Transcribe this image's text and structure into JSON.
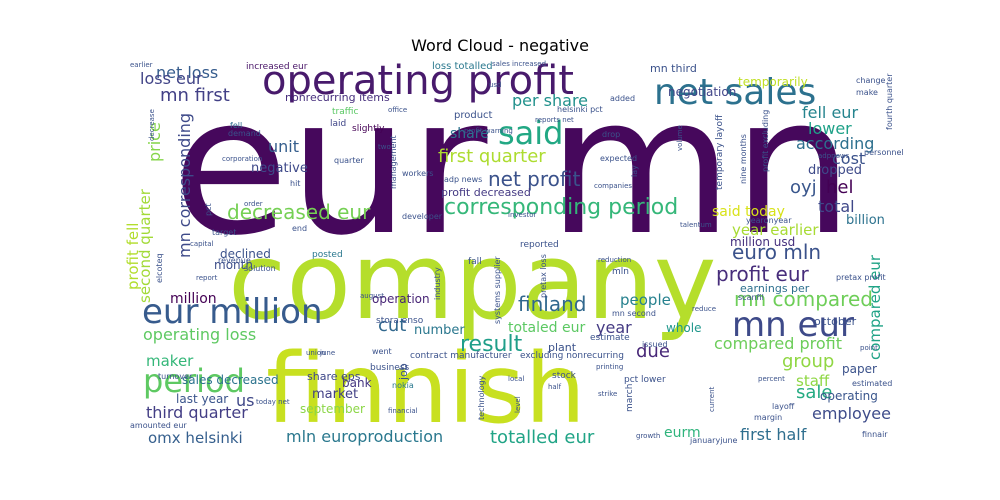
{
  "chart_data": {
    "type": "wordcloud",
    "title": "Word Cloud - negative",
    "background": "#ffffff",
    "colormap": "viridis",
    "words": [
      {
        "text": "eur mn",
        "weight": 100,
        "color": "#46085c"
      },
      {
        "text": "company",
        "weight": 78,
        "color": "#b5de2b"
      },
      {
        "text": "finnish",
        "weight": 72,
        "color": "#c8e020"
      },
      {
        "text": "operating profit",
        "weight": 36,
        "color": "#481a6c"
      },
      {
        "text": "net sales",
        "weight": 32,
        "color": "#2c718e"
      },
      {
        "text": "eur million",
        "weight": 28,
        "color": "#375b8d"
      },
      {
        "text": "mn eur",
        "weight": 28,
        "color": "#3e4a89"
      },
      {
        "text": "said",
        "weight": 28,
        "color": "#22a884"
      },
      {
        "text": "period",
        "weight": 26,
        "color": "#5ec962"
      },
      {
        "text": "corresponding period",
        "weight": 20,
        "color": "#35b779"
      },
      {
        "text": "decreased eur",
        "weight": 18,
        "color": "#75d054"
      },
      {
        "text": "net profit",
        "weight": 18,
        "color": "#3b528b"
      },
      {
        "text": "result",
        "weight": 18,
        "color": "#1f9e89"
      },
      {
        "text": "profit eur",
        "weight": 17,
        "color": "#472d7b"
      },
      {
        "text": "euro mln",
        "weight": 17,
        "color": "#3b528b"
      },
      {
        "text": "finland",
        "weight": 17,
        "color": "#31688e"
      },
      {
        "text": "mn compared",
        "weight": 17,
        "color": "#6ece58"
      },
      {
        "text": "first quarter",
        "weight": 16,
        "color": "#addc30"
      },
      {
        "text": "per share",
        "weight": 15,
        "color": "#21918c"
      },
      {
        "text": "mn first",
        "weight": 16,
        "color": "#424086"
      },
      {
        "text": "net loss",
        "weight": 15,
        "color": "#365c8d"
      },
      {
        "text": "loss eur",
        "weight": 15,
        "color": "#414487"
      },
      {
        "text": "oyj",
        "weight": 16,
        "color": "#39568c"
      },
      {
        "text": "hel",
        "weight": 16,
        "color": "#440154"
      },
      {
        "text": "cost",
        "weight": 14,
        "color": "#3b528b"
      },
      {
        "text": "lower",
        "weight": 14,
        "color": "#1fa188"
      },
      {
        "text": "according",
        "weight": 14,
        "color": "#2d708e"
      },
      {
        "text": "fell eur",
        "weight": 14,
        "color": "#25848e"
      },
      {
        "text": "total",
        "weight": 14,
        "color": "#3f4889"
      },
      {
        "text": "said today",
        "weight": 13,
        "color": "#d8e219"
      },
      {
        "text": "year earlier",
        "weight": 13,
        "color": "#a8db34"
      },
      {
        "text": "operating loss",
        "weight": 14,
        "color": "#5ec962"
      },
      {
        "text": "totalled eur",
        "weight": 16,
        "color": "#20a486"
      },
      {
        "text": "first half",
        "weight": 15,
        "color": "#2e6e8e"
      },
      {
        "text": "mln europroduction",
        "weight": 15,
        "color": "#2a788e"
      },
      {
        "text": "omx helsinki",
        "weight": 14,
        "color": "#355f8d"
      },
      {
        "text": "third quarter",
        "weight": 14,
        "color": "#433e85"
      },
      {
        "text": "employee",
        "weight": 14,
        "color": "#3e4c8a"
      },
      {
        "text": "group",
        "weight": 16,
        "color": "#90d743"
      },
      {
        "text": "sale",
        "weight": 16,
        "color": "#25ab82"
      },
      {
        "text": "compared profit",
        "weight": 14,
        "color": "#6ccd5a"
      },
      {
        "text": "people",
        "weight": 13,
        "color": "#26818e"
      },
      {
        "text": "year",
        "weight": 14,
        "color": "#443a83"
      },
      {
        "text": "cut",
        "weight": 14,
        "color": "#31688e"
      },
      {
        "text": "due",
        "weight": 14,
        "color": "#482878"
      },
      {
        "text": "us",
        "weight": 14,
        "color": "#3f4788"
      },
      {
        "text": "staff",
        "weight": 13,
        "color": "#8fd744"
      },
      {
        "text": "price",
        "weight": 14,
        "color": "#85d54a"
      },
      {
        "text": "unit",
        "weight": 12,
        "color": "#355e8d"
      },
      {
        "text": "share",
        "weight": 12,
        "color": "#2c738e"
      },
      {
        "text": "eurm",
        "weight": 12,
        "color": "#2fb47c"
      },
      {
        "text": "totaled eur",
        "weight": 11,
        "color": "#5cc863"
      },
      {
        "text": "dropped",
        "weight": 11,
        "color": "#3e4a89"
      },
      {
        "text": "billion",
        "weight": 10,
        "color": "#2c728e"
      },
      {
        "text": "million usd",
        "weight": 10,
        "color": "#46307e"
      },
      {
        "text": "million",
        "weight": 12,
        "color": "#440154"
      },
      {
        "text": "declined",
        "weight": 10,
        "color": "#3b528b"
      },
      {
        "text": "month",
        "weight": 10,
        "color": "#3d4e8a"
      },
      {
        "text": "number",
        "weight": 11,
        "color": "#2a778e"
      },
      {
        "text": "maker",
        "weight": 12,
        "color": "#35b779"
      },
      {
        "text": "sales decreased",
        "weight": 10,
        "color": "#2c738e"
      },
      {
        "text": "bank",
        "weight": 10,
        "color": "#453781"
      },
      {
        "text": "market",
        "weight": 10,
        "color": "#424086"
      },
      {
        "text": "last year",
        "weight": 10,
        "color": "#3a548c"
      },
      {
        "text": "operation",
        "weight": 10,
        "color": "#482576"
      },
      {
        "text": "negative",
        "weight": 10,
        "color": "#3e4989"
      },
      {
        "text": "earnings per",
        "weight": 9,
        "color": "#2d708e"
      },
      {
        "text": "whole",
        "weight": 9,
        "color": "#1f978b"
      },
      {
        "text": "paper",
        "weight": 9,
        "color": "#3b528b"
      },
      {
        "text": "operating",
        "weight": 9,
        "color": "#39558c"
      },
      {
        "text": "share eps",
        "weight": 9,
        "color": "#3f4889"
      },
      {
        "text": "september",
        "weight": 9,
        "color": "#8bd646"
      },
      {
        "text": "nonrecurring items",
        "weight": 9,
        "color": "#472f7d"
      },
      {
        "text": "profit decreased",
        "weight": 8,
        "color": "#443983"
      },
      {
        "text": "negotiation",
        "weight": 9,
        "color": "#404588"
      },
      {
        "text": "temporarily",
        "weight": 9,
        "color": "#c0df25"
      },
      {
        "text": "mn third",
        "weight": 8,
        "color": "#3b528b"
      },
      {
        "text": "increased eur",
        "weight": 7,
        "color": "#481467"
      },
      {
        "text": "loss totalled",
        "weight": 7,
        "color": "#2a788e"
      },
      {
        "text": "second quarter",
        "weight": 13,
        "color": "#a2da37"
      },
      {
        "text": "mn corresponding",
        "weight": 14,
        "color": "#3e4a89"
      },
      {
        "text": "compared eur",
        "weight": 13,
        "color": "#20a386"
      },
      {
        "text": "profit fell",
        "weight": 13,
        "color": "#b2dd2c"
      },
      {
        "text": "traffic",
        "weight": 7,
        "color": "#5ac864"
      },
      {
        "text": "laid",
        "weight": 7,
        "color": "#404688"
      },
      {
        "text": "slightly",
        "weight": 7,
        "color": "#440154"
      },
      {
        "text": "fell",
        "weight": 7,
        "color": "#2f6c8e"
      },
      {
        "text": "demand",
        "weight": 7,
        "color": "#3b528b"
      },
      {
        "text": "adp news",
        "weight": 6,
        "color": "#3a538b"
      },
      {
        "text": "product",
        "weight": 8,
        "color": "#3b528b"
      },
      {
        "text": "quarter",
        "weight": 6,
        "color": "#3b528b"
      },
      {
        "text": "helsinki pct",
        "weight": 6,
        "color": "#3b528b"
      },
      {
        "text": "reported",
        "weight": 7,
        "color": "#3b528b"
      },
      {
        "text": "developer",
        "weight": 6,
        "color": "#3b528b"
      },
      {
        "text": "posted",
        "weight": 7,
        "color": "#2a788e"
      },
      {
        "text": "fall",
        "weight": 7,
        "color": "#3b528b"
      },
      {
        "text": "mln",
        "weight": 7,
        "color": "#3b528b"
      },
      {
        "text": "job",
        "weight": 8,
        "color": "#3b528b"
      },
      {
        "text": "plant",
        "weight": 8,
        "color": "#3b528b"
      },
      {
        "text": "estimate",
        "weight": 7,
        "color": "#3b528b"
      },
      {
        "text": "stock",
        "weight": 7,
        "color": "#3b528b"
      },
      {
        "text": "nokia",
        "weight": 6,
        "color": "#2a788e"
      },
      {
        "text": "pct lower",
        "weight": 7,
        "color": "#3b528b"
      },
      {
        "text": "march",
        "weight": 7,
        "color": "#3b528b"
      },
      {
        "text": "business",
        "weight": 7,
        "color": "#3b528b"
      },
      {
        "text": "stora enso",
        "weight": 7,
        "color": "#3b528b"
      },
      {
        "text": "mn second",
        "weight": 6,
        "color": "#3b528b"
      },
      {
        "text": "contract manufacturer",
        "weight": 7,
        "color": "#3b528b"
      },
      {
        "text": "excluding nonrecurring",
        "weight": 7,
        "color": "#3b528b"
      },
      {
        "text": "went",
        "weight": 6,
        "color": "#3b528b"
      },
      {
        "text": "issued",
        "weight": 6,
        "color": "#3b528b"
      },
      {
        "text": "october",
        "weight": 8,
        "color": "#3b528b"
      },
      {
        "text": "nine months",
        "weight": 6,
        "color": "#3b528b"
      },
      {
        "text": "temporary layoff",
        "weight": 7,
        "color": "#3b528b"
      },
      {
        "text": "profit excluding",
        "weight": 6,
        "color": "#3b528b"
      },
      {
        "text": "yearonyear",
        "weight": 6,
        "color": "#3b528b"
      },
      {
        "text": "scanfil",
        "weight": 6,
        "color": "#3b528b"
      },
      {
        "text": "pretax profit",
        "weight": 6,
        "color": "#3b528b"
      },
      {
        "text": "estimated",
        "weight": 6,
        "color": "#3b528b"
      },
      {
        "text": "layoff",
        "weight": 6,
        "color": "#3b528b"
      },
      {
        "text": "margin",
        "weight": 6,
        "color": "#3b528b"
      },
      {
        "text": "finnair",
        "weight": 6,
        "color": "#3b528b"
      },
      {
        "text": "januaryjune",
        "weight": 6,
        "color": "#3b528b"
      },
      {
        "text": "technology",
        "weight": 6,
        "color": "#3b528b"
      },
      {
        "text": "industry",
        "weight": 6,
        "color": "#3b528b"
      },
      {
        "text": "systems supplier",
        "weight": 6,
        "color": "#3b528b"
      },
      {
        "text": "pretax loss",
        "weight": 6,
        "color": "#3b528b"
      },
      {
        "text": "management",
        "weight": 6,
        "color": "#3b528b"
      },
      {
        "text": "workers",
        "weight": 6,
        "color": "#3b528b"
      },
      {
        "text": "corporation",
        "weight": 5,
        "color": "#3b528b"
      },
      {
        "text": "revenue",
        "weight": 6,
        "color": "#3b528b"
      },
      {
        "text": "solution",
        "weight": 6,
        "color": "#3b528b"
      },
      {
        "text": "end",
        "weight": 6,
        "color": "#3b528b"
      },
      {
        "text": "target",
        "weight": 6,
        "color": "#3b528b"
      },
      {
        "text": "elcoteq",
        "weight": 6,
        "color": "#3b528b"
      },
      {
        "text": "turnover",
        "weight": 6,
        "color": "#3b528b"
      },
      {
        "text": "amounted eur",
        "weight": 6,
        "color": "#3b528b"
      },
      {
        "text": "hit",
        "weight": 6,
        "color": "#3b528b"
      },
      {
        "text": "pct",
        "weight": 6,
        "color": "#3b528b"
      },
      {
        "text": "adpnews",
        "weight": 6,
        "color": "#3b528b"
      },
      {
        "text": "personnel",
        "weight": 6,
        "color": "#3b528b"
      },
      {
        "text": "fourth quarter",
        "weight": 6,
        "color": "#3b528b"
      },
      {
        "text": "change",
        "weight": 6,
        "color": "#3b528b"
      },
      {
        "text": "make",
        "weight": 6,
        "color": "#3b528b"
      },
      {
        "text": "decrease",
        "weight": 6,
        "color": "#3b528b"
      },
      {
        "text": "earlier",
        "weight": 6,
        "color": "#3b528b"
      },
      {
        "text": "added",
        "weight": 6,
        "color": "#3b528b"
      },
      {
        "text": "drop",
        "weight": 6,
        "color": "#3b528b"
      },
      {
        "text": "lay",
        "weight": 6,
        "color": "#3b528b"
      },
      {
        "text": "expected",
        "weight": 6,
        "color": "#3b528b"
      },
      {
        "text": "volume",
        "weight": 6,
        "color": "#3b528b"
      },
      {
        "text": "companies",
        "weight": 6,
        "color": "#3b528b"
      },
      {
        "text": "office",
        "weight": 6,
        "color": "#3b528b"
      },
      {
        "text": "two",
        "weight": 6,
        "color": "#3b528b"
      },
      {
        "text": "august",
        "weight": 6,
        "color": "#3b528b"
      },
      {
        "text": "percent",
        "weight": 6,
        "color": "#3b528b"
      },
      {
        "text": "reduce",
        "weight": 6,
        "color": "#3b528b"
      },
      {
        "text": "point",
        "weight": 6,
        "color": "#3b528b"
      },
      {
        "text": "half",
        "weight": 6,
        "color": "#3b528b"
      },
      {
        "text": "local",
        "weight": 6,
        "color": "#3b528b"
      },
      {
        "text": "strike",
        "weight": 6,
        "color": "#3b528b"
      },
      {
        "text": "printing",
        "weight": 6,
        "color": "#3b528b"
      },
      {
        "text": "level",
        "weight": 6,
        "color": "#3b528b"
      },
      {
        "text": "growth",
        "weight": 6,
        "color": "#3b528b"
      },
      {
        "text": "current",
        "weight": 6,
        "color": "#3b528b"
      },
      {
        "text": "usd",
        "weight": 6,
        "color": "#3b528b"
      },
      {
        "text": "capital",
        "weight": 6,
        "color": "#3b528b"
      },
      {
        "text": "report",
        "weight": 6,
        "color": "#3b528b"
      },
      {
        "text": "june",
        "weight": 6,
        "color": "#3b528b"
      },
      {
        "text": "union",
        "weight": 6,
        "color": "#3b528b"
      },
      {
        "text": "financial",
        "weight": 6,
        "color": "#3b528b"
      },
      {
        "text": "today net",
        "weight": 6,
        "color": "#3b528b"
      },
      {
        "text": "reduction",
        "weight": 6,
        "color": "#3b528b"
      },
      {
        "text": "talentum",
        "weight": 6,
        "color": "#3b528b"
      },
      {
        "text": "investor",
        "weight": 6,
        "color": "#3b528b"
      },
      {
        "text": "order",
        "weight": 6,
        "color": "#3b528b"
      },
      {
        "text": "sales increased",
        "weight": 6,
        "color": "#3b528b"
      },
      {
        "text": "reports net",
        "weight": 6,
        "color": "#3b528b"
      },
      {
        "text": "profit warning",
        "weight": 6,
        "color": "#3b528b"
      }
    ]
  }
}
